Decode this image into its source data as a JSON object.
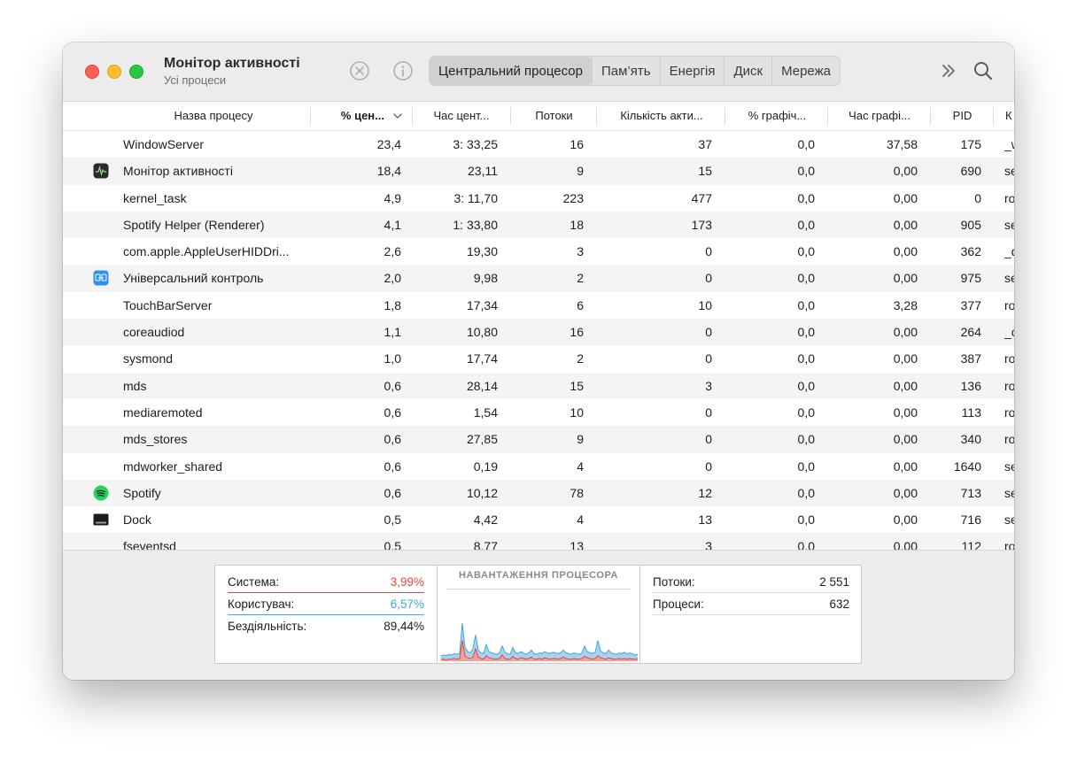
{
  "window": {
    "title": "Монітор активності",
    "subtitle": "Усі процеси"
  },
  "toolbar": {
    "stop_icon": "x-circle-icon",
    "info_icon": "info-icon",
    "tabs": [
      {
        "label": "Центральний процесор",
        "active": true
      },
      {
        "label": "Пам’ять",
        "active": false
      },
      {
        "label": "Енергія",
        "active": false
      },
      {
        "label": "Диск",
        "active": false
      },
      {
        "label": "Мережа",
        "active": false
      }
    ],
    "more_icon": "chevron-double-right-icon",
    "search_icon": "search-icon"
  },
  "table": {
    "columns": [
      "Назва процесу",
      "% цен...",
      "Час цент...",
      "Потоки",
      "Кількість акти...",
      "% графіч...",
      "Час графі...",
      "PID",
      "К"
    ],
    "sorted_column": 1,
    "sort_direction": "descending",
    "rows": [
      {
        "name": "WindowServer",
        "icon": "",
        "cpu": "23,4",
        "cpu_time": "3: 33,25",
        "threads": "16",
        "wakeups": "37",
        "gpu": "0,0",
        "gpu_time": "37,58",
        "pid": "175",
        "user": "_w"
      },
      {
        "name": "Монітор активності",
        "icon": "activity-monitor-icon",
        "cpu": "18,4",
        "cpu_time": "23,11",
        "threads": "9",
        "wakeups": "15",
        "gpu": "0,0",
        "gpu_time": "0,00",
        "pid": "690",
        "user": "se"
      },
      {
        "name": "kernel_task",
        "icon": "",
        "cpu": "4,9",
        "cpu_time": "3: 11,70",
        "threads": "223",
        "wakeups": "477",
        "gpu": "0,0",
        "gpu_time": "0,00",
        "pid": "0",
        "user": "ro"
      },
      {
        "name": "Spotify Helper (Renderer)",
        "icon": "",
        "cpu": "4,1",
        "cpu_time": "1: 33,80",
        "threads": "18",
        "wakeups": "173",
        "gpu": "0,0",
        "gpu_time": "0,00",
        "pid": "905",
        "user": "se"
      },
      {
        "name": "com.apple.AppleUserHIDDri...",
        "icon": "",
        "cpu": "2,6",
        "cpu_time": "19,30",
        "threads": "3",
        "wakeups": "0",
        "gpu": "0,0",
        "gpu_time": "0,00",
        "pid": "362",
        "user": "_d"
      },
      {
        "name": "Універсальний контроль",
        "icon": "universal-control-icon",
        "cpu": "2,0",
        "cpu_time": "9,98",
        "threads": "2",
        "wakeups": "0",
        "gpu": "0,0",
        "gpu_time": "0,00",
        "pid": "975",
        "user": "se"
      },
      {
        "name": "TouchBarServer",
        "icon": "",
        "cpu": "1,8",
        "cpu_time": "17,34",
        "threads": "6",
        "wakeups": "10",
        "gpu": "0,0",
        "gpu_time": "3,28",
        "pid": "377",
        "user": "ro"
      },
      {
        "name": "coreaudiod",
        "icon": "",
        "cpu": "1,1",
        "cpu_time": "10,80",
        "threads": "16",
        "wakeups": "0",
        "gpu": "0,0",
        "gpu_time": "0,00",
        "pid": "264",
        "user": "_c"
      },
      {
        "name": "sysmond",
        "icon": "",
        "cpu": "1,0",
        "cpu_time": "17,74",
        "threads": "2",
        "wakeups": "0",
        "gpu": "0,0",
        "gpu_time": "0,00",
        "pid": "387",
        "user": "ro"
      },
      {
        "name": "mds",
        "icon": "",
        "cpu": "0,6",
        "cpu_time": "28,14",
        "threads": "15",
        "wakeups": "3",
        "gpu": "0,0",
        "gpu_time": "0,00",
        "pid": "136",
        "user": "ro"
      },
      {
        "name": "mediaremoted",
        "icon": "",
        "cpu": "0,6",
        "cpu_time": "1,54",
        "threads": "10",
        "wakeups": "0",
        "gpu": "0,0",
        "gpu_time": "0,00",
        "pid": "113",
        "user": "ro"
      },
      {
        "name": "mds_stores",
        "icon": "",
        "cpu": "0,6",
        "cpu_time": "27,85",
        "threads": "9",
        "wakeups": "0",
        "gpu": "0,0",
        "gpu_time": "0,00",
        "pid": "340",
        "user": "ro"
      },
      {
        "name": "mdworker_shared",
        "icon": "",
        "cpu": "0,6",
        "cpu_time": "0,19",
        "threads": "4",
        "wakeups": "0",
        "gpu": "0,0",
        "gpu_time": "0,00",
        "pid": "1640",
        "user": "se"
      },
      {
        "name": "Spotify",
        "icon": "spotify-icon",
        "cpu": "0,6",
        "cpu_time": "10,12",
        "threads": "78",
        "wakeups": "12",
        "gpu": "0,0",
        "gpu_time": "0,00",
        "pid": "713",
        "user": "se"
      },
      {
        "name": "Dock",
        "icon": "dock-icon",
        "cpu": "0,5",
        "cpu_time": "4,42",
        "threads": "4",
        "wakeups": "13",
        "gpu": "0,0",
        "gpu_time": "0,00",
        "pid": "716",
        "user": "se"
      },
      {
        "name": "fseventsd",
        "icon": "",
        "cpu": "0,5",
        "cpu_time": "8,77",
        "threads": "13",
        "wakeups": "3",
        "gpu": "0,0",
        "gpu_time": "0,00",
        "pid": "112",
        "user": "ro"
      }
    ]
  },
  "footer": {
    "system_label": "Система:",
    "system_value": "3,99%",
    "user_label": "Користувач:",
    "user_value": "6,57%",
    "idle_label": "Бездіяльність:",
    "idle_value": "89,44%",
    "chart_title": "НАВАНТАЖЕННЯ ПРОЦЕСОРА",
    "threads_label": "Потоки:",
    "threads_value": "2 551",
    "processes_label": "Процеси:",
    "processes_value": "632",
    "colors": {
      "system": "#e5483f",
      "user": "#3fa7e0",
      "user_fill": "#a8d3ef",
      "system_fill": "#f0a19c"
    }
  },
  "chart_data": {
    "type": "area",
    "title": "НАВАНТАЖЕННЯ ПРОЦЕСОРА",
    "ylim": [
      0,
      100
    ],
    "series": [
      {
        "name": "Користувач",
        "values": [
          8,
          9,
          8,
          10,
          9,
          11,
          10,
          12,
          55,
          20,
          14,
          12,
          18,
          38,
          16,
          12,
          11,
          24,
          14,
          12,
          11,
          10,
          12,
          22,
          13,
          11,
          10,
          20,
          12,
          11,
          14,
          12,
          10,
          12,
          16,
          11,
          10,
          12,
          11,
          14,
          12,
          11,
          13,
          12,
          11,
          12,
          16,
          12,
          11,
          10,
          12,
          11,
          10,
          12,
          22,
          14,
          12,
          11,
          13,
          30,
          15,
          12,
          11,
          16,
          12,
          11,
          10,
          12,
          11,
          13,
          10,
          12,
          11,
          9,
          10
        ]
      },
      {
        "name": "Система",
        "values": [
          3,
          3,
          2,
          3,
          3,
          4,
          3,
          4,
          30,
          8,
          5,
          4,
          6,
          18,
          6,
          4,
          3,
          8,
          5,
          4,
          3,
          3,
          4,
          9,
          4,
          3,
          3,
          7,
          4,
          3,
          5,
          4,
          3,
          4,
          6,
          3,
          3,
          4,
          3,
          5,
          4,
          3,
          4,
          4,
          3,
          4,
          6,
          4,
          3,
          3,
          4,
          3,
          3,
          4,
          7,
          5,
          4,
          3,
          4,
          8,
          5,
          4,
          3,
          5,
          4,
          3,
          3,
          4,
          3,
          4,
          3,
          4,
          3,
          3,
          3
        ]
      }
    ]
  }
}
